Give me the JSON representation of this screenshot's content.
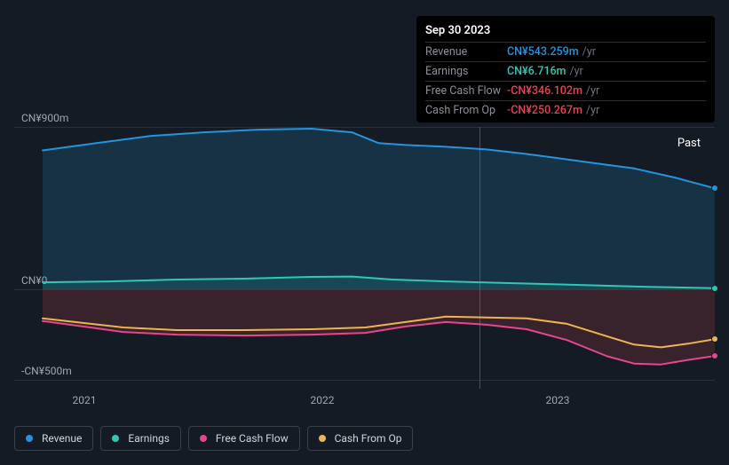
{
  "tooltip": {
    "date": "Sep 30 2023",
    "rows": [
      {
        "label": "Revenue",
        "value": "CN¥543.259m",
        "suffix": "/yr",
        "color": "#2394df"
      },
      {
        "label": "Earnings",
        "value": "CN¥6.716m",
        "suffix": "/yr",
        "color": "#30c7b5"
      },
      {
        "label": "Free Cash Flow",
        "value": "-CN¥346.102m",
        "suffix": "/yr",
        "color": "#e64552"
      },
      {
        "label": "Cash From Op",
        "value": "-CN¥250.267m",
        "suffix": "/yr",
        "color": "#e64552"
      }
    ]
  },
  "chart": {
    "type": "area-line",
    "background": "#151b24",
    "grid_color": "#2a3038",
    "ylim": [
      -500,
      900
    ],
    "y_ticks": [
      {
        "v": 900,
        "label": "CN¥900m"
      },
      {
        "v": 0,
        "label": "CN¥0"
      },
      {
        "v": -500,
        "label": "-CN¥500m"
      }
    ],
    "x_ticks": [
      {
        "pos": 0.041,
        "label": "2021"
      },
      {
        "pos": 0.395,
        "label": "2022"
      },
      {
        "pos": 0.745,
        "label": "2023"
      }
    ],
    "past_label": "Past",
    "center_line_pos": 0.65,
    "series": {
      "revenue": {
        "color": "#2394df",
        "fill": "rgba(35,148,223,0.18)",
        "points": [
          [
            0.0,
            770
          ],
          [
            0.08,
            810
          ],
          [
            0.16,
            850
          ],
          [
            0.24,
            870
          ],
          [
            0.32,
            885
          ],
          [
            0.4,
            890
          ],
          [
            0.46,
            870
          ],
          [
            0.5,
            810
          ],
          [
            0.54,
            800
          ],
          [
            0.6,
            790
          ],
          [
            0.66,
            775
          ],
          [
            0.72,
            750
          ],
          [
            0.78,
            720
          ],
          [
            0.82,
            700
          ],
          [
            0.88,
            670
          ],
          [
            0.94,
            620
          ],
          [
            1.0,
            560
          ]
        ]
      },
      "earnings": {
        "color": "#30c7b5",
        "fill": "rgba(48,199,181,0.15)",
        "points": [
          [
            0.0,
            40
          ],
          [
            0.1,
            45
          ],
          [
            0.2,
            55
          ],
          [
            0.3,
            60
          ],
          [
            0.4,
            70
          ],
          [
            0.46,
            72
          ],
          [
            0.52,
            55
          ],
          [
            0.6,
            45
          ],
          [
            0.7,
            35
          ],
          [
            0.8,
            25
          ],
          [
            0.9,
            15
          ],
          [
            1.0,
            7
          ]
        ]
      },
      "cash_from_op": {
        "color": "#eeb54e",
        "points": [
          [
            0.0,
            -160
          ],
          [
            0.06,
            -185
          ],
          [
            0.12,
            -210
          ],
          [
            0.2,
            -225
          ],
          [
            0.3,
            -225
          ],
          [
            0.4,
            -220
          ],
          [
            0.48,
            -210
          ],
          [
            0.54,
            -180
          ],
          [
            0.6,
            -150
          ],
          [
            0.66,
            -155
          ],
          [
            0.72,
            -160
          ],
          [
            0.78,
            -190
          ],
          [
            0.84,
            -260
          ],
          [
            0.88,
            -305
          ],
          [
            0.92,
            -320
          ],
          [
            0.96,
            -300
          ],
          [
            1.0,
            -275
          ]
        ]
      },
      "free_cash_flow": {
        "color": "#e6468f",
        "fill": "rgba(230,69,82,0.17)",
        "points": [
          [
            0.0,
            -175
          ],
          [
            0.06,
            -205
          ],
          [
            0.12,
            -235
          ],
          [
            0.2,
            -250
          ],
          [
            0.3,
            -255
          ],
          [
            0.4,
            -250
          ],
          [
            0.48,
            -240
          ],
          [
            0.54,
            -205
          ],
          [
            0.6,
            -180
          ],
          [
            0.66,
            -195
          ],
          [
            0.72,
            -220
          ],
          [
            0.78,
            -280
          ],
          [
            0.84,
            -370
          ],
          [
            0.88,
            -410
          ],
          [
            0.92,
            -415
          ],
          [
            0.96,
            -390
          ],
          [
            1.0,
            -368
          ]
        ]
      }
    }
  },
  "legend": [
    {
      "label": "Revenue",
      "color": "#2394df",
      "key": "revenue"
    },
    {
      "label": "Earnings",
      "color": "#30c7b5",
      "key": "earnings"
    },
    {
      "label": "Free Cash Flow",
      "color": "#e6468f",
      "key": "free_cash_flow"
    },
    {
      "label": "Cash From Op",
      "color": "#eeb54e",
      "key": "cash_from_op"
    }
  ]
}
